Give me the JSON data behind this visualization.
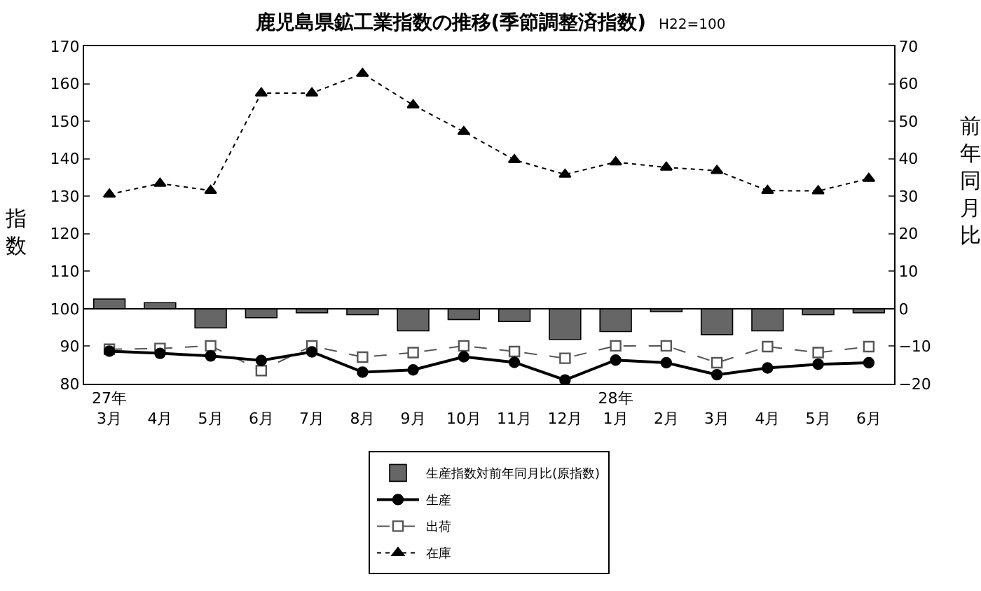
{
  "chart_data": {
    "type": "line",
    "title": "鹿児島県鉱工業指数の推移(季節調整済指数)",
    "subtitle": "H22=100",
    "ylabel": "指数",
    "y2label": "前年同月比",
    "categories": [
      "27年\n3月",
      "4月",
      "5月",
      "6月",
      "7月",
      "8月",
      "9月",
      "10月",
      "11月",
      "12月",
      "28年\n1月",
      "2月",
      "3月",
      "4月",
      "5月",
      "6月"
    ],
    "series": [
      {
        "name": "生産指数対前年同月比(原指数)",
        "type": "bar",
        "axis": "y2",
        "color": "#666666",
        "values": [
          2.6,
          1.6,
          -5.1,
          -2.4,
          -1.1,
          -1.6,
          -5.9,
          -2.9,
          -3.4,
          -8.2,
          -6.1,
          -0.8,
          -6.9,
          -5.9,
          -1.6,
          -1.1
        ]
      },
      {
        "name": "生産",
        "color": "#000000",
        "marker": "circle",
        "line_style": "solid",
        "values": [
          88.7,
          88.1,
          87.4,
          86.2,
          88.5,
          83.1,
          83.7,
          87.2,
          85.7,
          81.0,
          86.3,
          85.6,
          82.4,
          84.2,
          85.2,
          85.6
        ]
      },
      {
        "name": "出荷",
        "color": "#555555",
        "marker": "square",
        "line_style": "dashed",
        "values": [
          89.2,
          89.4,
          90.1,
          83.5,
          90.1,
          87.1,
          88.3,
          90.1,
          88.6,
          86.8,
          90.1,
          90.1,
          85.6,
          89.9,
          88.3,
          89.9
        ]
      },
      {
        "name": "在庫",
        "color": "#000000",
        "marker": "triangle",
        "line_style": "dotted",
        "values": [
          130.5,
          133.4,
          131.5,
          157.5,
          157.5,
          162.7,
          154.3,
          147.2,
          139.7,
          135.8,
          139.1,
          137.7,
          136.8,
          131.5,
          131.4,
          134.7
        ]
      }
    ],
    "ylim": [
      80,
      170
    ],
    "yticks": [
      80,
      90,
      100,
      110,
      120,
      130,
      140,
      150,
      160,
      170
    ],
    "y2lim": [
      -20,
      70
    ],
    "y2ticks": [
      -20,
      -10,
      0,
      10,
      20,
      30,
      40,
      50,
      60,
      70
    ],
    "ref_lines": [
      {
        "axis": "y2",
        "value": 0
      }
    ],
    "grid": false,
    "legend": "bottom"
  }
}
